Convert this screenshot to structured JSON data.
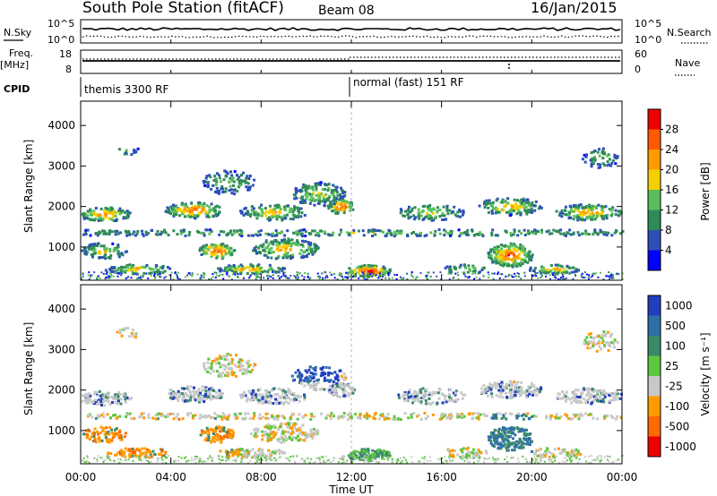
{
  "chart_data": {
    "type": "heatmap",
    "title": "South Pole Station (fitACF)",
    "beam": "Beam 08",
    "date": "16/Jan/2015",
    "top_panels": {
      "nsky_label": "N.Sky",
      "nsearch_label": "N.Search",
      "nsky_ticks": [
        "10^5",
        "10^0"
      ],
      "nsearch_ticks": [
        "10^5",
        "10^0"
      ],
      "freq_label": "Freq.",
      "freq_unit": "[MHz]",
      "freq_ticks": [
        "18",
        "8"
      ],
      "nave_label": "Nave",
      "nave_ticks": [
        "60",
        "0"
      ],
      "cpid_label": "CPID",
      "cpid_segments": [
        {
          "label": "themis 3300 RF",
          "start_hour": 0
        },
        {
          "label": "normal (fast) 151 RF",
          "start_hour": 12
        }
      ]
    },
    "x": {
      "label": "Time UT",
      "ticks": [
        "00:00",
        "04:00",
        "08:00",
        "12:00",
        "16:00",
        "20:00",
        "00:00"
      ],
      "range_hours": [
        0,
        24
      ]
    },
    "power_panel": {
      "ylabel": "Slant Range [km]",
      "yticks": [
        "1000",
        "2000",
        "3000",
        "4000"
      ],
      "ylim": [
        180,
        4600
      ],
      "colorbar_label": "Power [dB]",
      "colorbar_ticks": [
        "4",
        "8",
        "12",
        "16",
        "20",
        "24",
        "28"
      ],
      "colors": [
        "#0000ff",
        "#2c50b8",
        "#2e8b57",
        "#5abf5a",
        "#f5d000",
        "#ff9a00",
        "#ff5a00",
        "#ee0000"
      ]
    },
    "velocity_panel": {
      "ylabel": "Slant Range [km]",
      "yticks": [
        "1000",
        "2000",
        "3000",
        "4000"
      ],
      "ylim": [
        180,
        4600
      ],
      "colorbar_label": "Velocity [m s⁻¹]",
      "colorbar_ticks": [
        "1000",
        "500",
        "100",
        "25",
        "-25",
        "-100",
        "-500",
        "-1000"
      ],
      "colors": [
        "#1f3fbf",
        "#2f6fa8",
        "#3a8a6a",
        "#5cc840",
        "#c8c8c8",
        "#ff9a00",
        "#ff6a00",
        "#ee0000"
      ]
    }
  }
}
